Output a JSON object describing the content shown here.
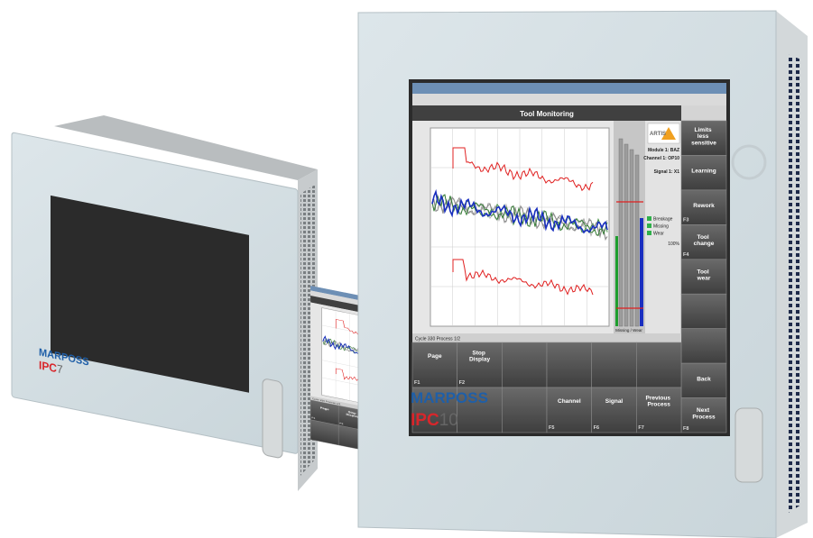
{
  "devices": [
    {
      "brand": "MARPOSS",
      "model": "IPC",
      "size": "7"
    },
    {
      "brand": "MARPOSS",
      "model": "IPC",
      "size": "10"
    }
  ],
  "screen": {
    "title": "Tool Monitoring",
    "logo": "ARTIS",
    "module": "Module 1:  BAZ",
    "channel": "Channel 1:  OP10",
    "signal": "Signal 1:  X1",
    "legend": [
      "Breakage",
      "Missing",
      "Wear"
    ],
    "percent": "100%",
    "gauge_label": "Missing / Wear",
    "status": "Cycle 330 Process 1/2",
    "side_keys": [
      "Limits less sensitive",
      "Learning",
      "Rework",
      "Tool change",
      "Tool wear"
    ],
    "side_keys_bottom": [
      "Back",
      "Next Process"
    ],
    "top_row": [
      "Page",
      "Stop Display"
    ],
    "bottom_row": [
      "Channel",
      "Signal",
      "Previous Process"
    ],
    "function_keys": [
      "F1",
      "F2",
      "F3",
      "F4",
      "F5",
      "F6",
      "F7",
      "F8"
    ]
  }
}
